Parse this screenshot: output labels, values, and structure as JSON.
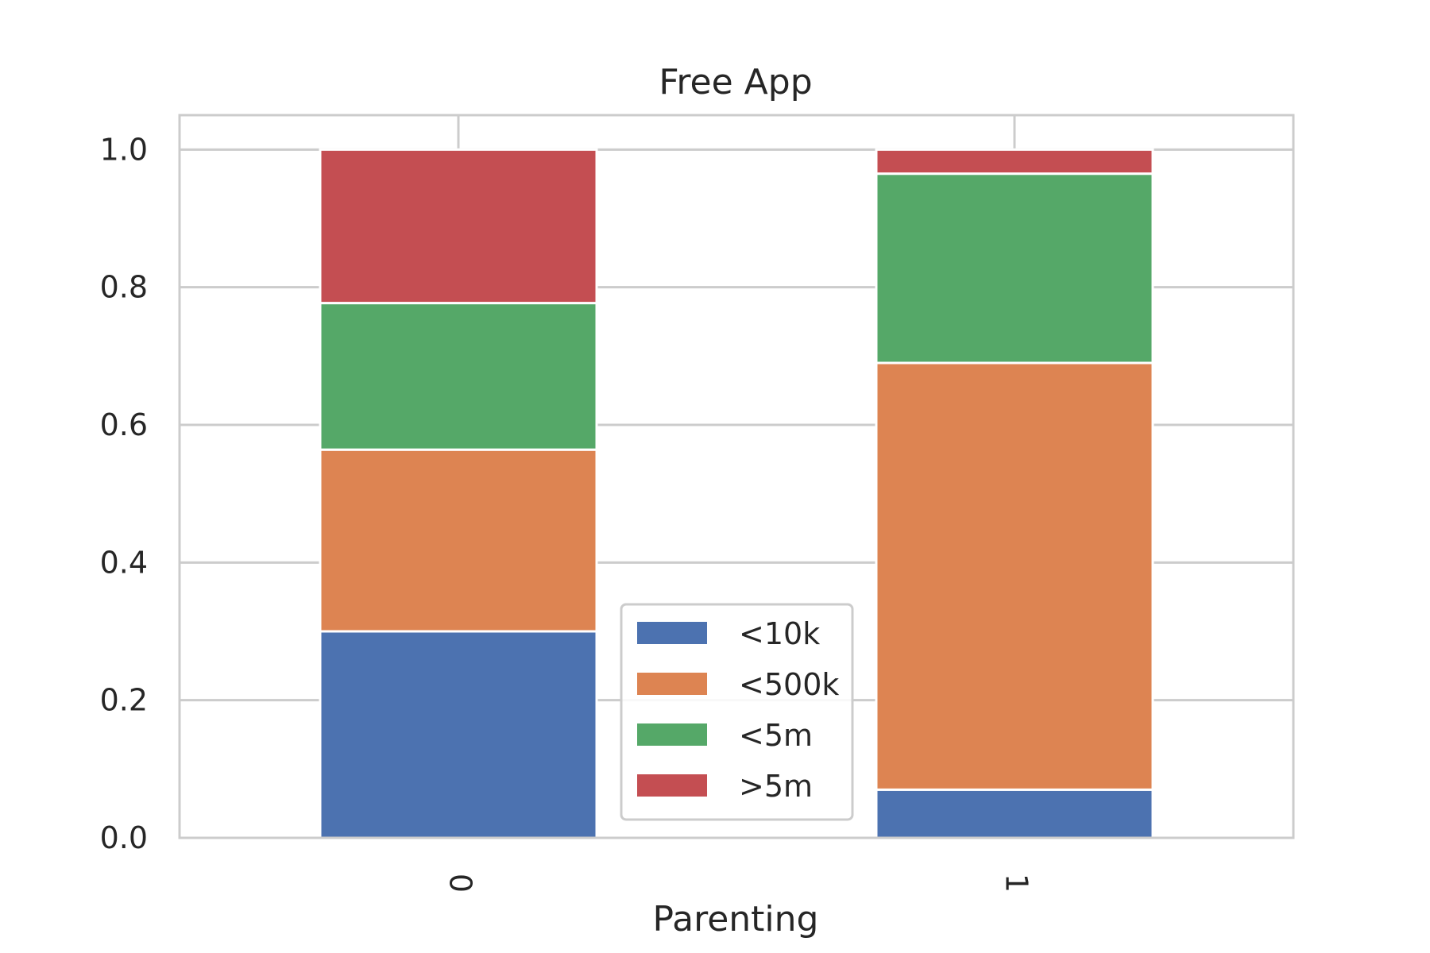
{
  "chart_data": {
    "type": "bar",
    "stacked": true,
    "title": "Free App",
    "xlabel": "Parenting",
    "ylabel": "",
    "categories": [
      "0",
      "1"
    ],
    "ylim": [
      0,
      1.05
    ],
    "yticks": [
      "0.0",
      "0.2",
      "0.4",
      "0.6",
      "0.8",
      "1.0"
    ],
    "grid": true,
    "legend_position": "bottom-center",
    "series": [
      {
        "name": "<10k",
        "color": "#4c72b0",
        "values": [
          0.3,
          0.07
        ]
      },
      {
        "name": "<500k",
        "color": "#dd8452",
        "values": [
          0.264,
          0.62
        ]
      },
      {
        "name": "<5m",
        "color": "#55a868",
        "values": [
          0.213,
          0.275
        ]
      },
      {
        "name": ">5m",
        "color": "#c44e52",
        "values": [
          0.223,
          0.035
        ]
      }
    ]
  }
}
